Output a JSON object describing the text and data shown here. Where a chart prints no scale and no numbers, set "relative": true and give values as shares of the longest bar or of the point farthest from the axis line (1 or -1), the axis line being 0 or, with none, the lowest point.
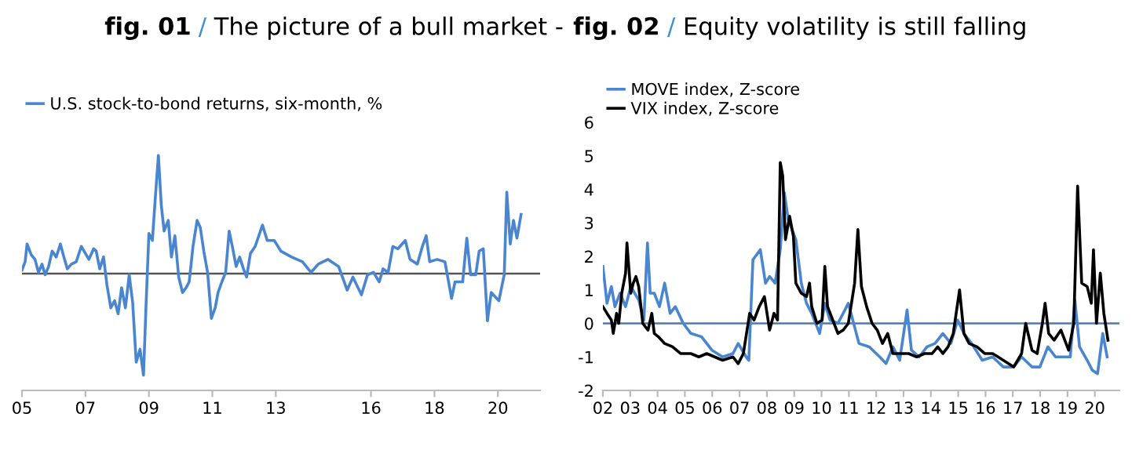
{
  "chart_data": [
    {
      "type": "line",
      "title": "fig. 01 / The picture of a bull market -",
      "relative": true,
      "legend": "top left",
      "line_style": "solid",
      "xlim": [
        2005,
        2021.33
      ],
      "xticks": [
        {
          "value": 2005,
          "label": "05"
        },
        {
          "value": 2007,
          "label": "07"
        },
        {
          "value": 2009,
          "label": "09"
        },
        {
          "value": 2011,
          "label": "11"
        },
        {
          "value": 2013,
          "label": "13"
        },
        {
          "value": 2016,
          "label": "16"
        },
        {
          "value": 2018,
          "label": "18"
        },
        {
          "value": 2020,
          "label": "20"
        }
      ],
      "series": [
        {
          "name": "U.S. stock-to-bond returns, six-month, %",
          "color": "#4a86d0",
          "x": [
            2005.0,
            2005.1,
            2005.16,
            2005.29,
            2005.41,
            2005.52,
            2005.63,
            2005.73,
            2005.84,
            2005.95,
            2006.08,
            2006.21,
            2006.32,
            2006.43,
            2006.56,
            2006.71,
            2006.87,
            2007.0,
            2007.11,
            2007.26,
            2007.34,
            2007.45,
            2007.57,
            2007.68,
            2007.8,
            2007.92,
            2008.03,
            2008.14,
            2008.26,
            2008.38,
            2008.49,
            2008.6,
            2008.72,
            2008.83,
            2008.91,
            2009.0,
            2009.11,
            2009.21,
            2009.3,
            2009.39,
            2009.48,
            2009.61,
            2009.71,
            2009.82,
            2009.94,
            2010.06,
            2010.17,
            2010.27,
            2010.39,
            2010.52,
            2010.62,
            2010.73,
            2010.85,
            2010.97,
            2011.09,
            2011.18,
            2011.3,
            2011.42,
            2011.53,
            2011.63,
            2011.75,
            2011.86,
            2011.98,
            2012.08,
            2012.2,
            2012.35,
            2012.58,
            2012.73,
            2012.95,
            2013.16,
            2013.5,
            2013.84,
            2014.11,
            2014.34,
            2014.64,
            2014.98,
            2015.25,
            2015.43,
            2015.7,
            2015.89,
            2016.08,
            2016.26,
            2016.38,
            2016.54,
            2016.69,
            2016.85,
            2017.08,
            2017.23,
            2017.46,
            2017.62,
            2017.74,
            2017.85,
            2018.08,
            2018.33,
            2018.54,
            2018.65,
            2018.89,
            2019.02,
            2019.14,
            2019.3,
            2019.41,
            2019.54,
            2019.67,
            2019.79,
            2020.03,
            2020.2,
            2020.28,
            2020.39,
            2020.49,
            2020.6,
            2020.73
          ],
          "values": [
            0.03,
            0.1,
            0.25,
            0.16,
            0.12,
            0.01,
            0.08,
            -0.01,
            0.06,
            0.19,
            0.14,
            0.25,
            0.14,
            0.04,
            0.08,
            0.1,
            0.23,
            0.17,
            0.12,
            0.21,
            0.19,
            0.04,
            0.14,
            -0.1,
            -0.29,
            -0.23,
            -0.34,
            -0.12,
            -0.29,
            -0.01,
            -0.25,
            -0.75,
            -0.64,
            -0.86,
            -0.27,
            0.34,
            0.28,
            0.67,
            1,
            0.58,
            0.36,
            0.45,
            0.14,
            0.32,
            -0.03,
            -0.16,
            -0.12,
            -0.07,
            0.23,
            0.45,
            0.39,
            0.19,
            0.01,
            -0.38,
            -0.29,
            -0.16,
            -0.07,
            0.01,
            0.36,
            0.23,
            0.06,
            0.14,
            0.04,
            -0.03,
            0.17,
            0.23,
            0.41,
            0.28,
            0.28,
            0.19,
            0.14,
            0.1,
            0.01,
            0.08,
            0.12,
            0.06,
            -0.14,
            -0.03,
            -0.18,
            -0.01,
            0.01,
            -0.07,
            0.04,
            0.01,
            0.23,
            0.21,
            0.28,
            0.12,
            0.08,
            0.23,
            0.32,
            0.1,
            0.12,
            0.1,
            -0.21,
            -0.07,
            -0.07,
            0.3,
            -0.01,
            -0.01,
            0.19,
            0.21,
            -0.4,
            -0.16,
            -0.23,
            -0.01,
            0.69,
            0.25,
            0.45,
            0.3,
            0.5
          ]
        }
      ]
    },
    {
      "type": "line",
      "title": "fig. 02 / Equity volatility is still falling",
      "legend": "top left",
      "line_style": "solid",
      "xlim": [
        2002,
        2020.9
      ],
      "ylim": [
        -2,
        6
      ],
      "yticks": [
        -2,
        -1,
        0,
        1,
        2,
        3,
        4,
        5,
        6
      ],
      "xticks": [
        {
          "value": 2002,
          "label": "02"
        },
        {
          "value": 2003,
          "label": "03"
        },
        {
          "value": 2004,
          "label": "04"
        },
        {
          "value": 2005,
          "label": "05"
        },
        {
          "value": 2006,
          "label": "06"
        },
        {
          "value": 2007,
          "label": "07"
        },
        {
          "value": 2008,
          "label": "08"
        },
        {
          "value": 2009,
          "label": "09"
        },
        {
          "value": 2010,
          "label": "10"
        },
        {
          "value": 2011,
          "label": "11"
        },
        {
          "value": 2012,
          "label": "12"
        },
        {
          "value": 2013,
          "label": "13"
        },
        {
          "value": 2014,
          "label": "14"
        },
        {
          "value": 2015,
          "label": "15"
        },
        {
          "value": 2016,
          "label": "16"
        },
        {
          "value": 2017,
          "label": "17"
        },
        {
          "value": 2018,
          "label": "18"
        },
        {
          "value": 2019,
          "label": "19"
        },
        {
          "value": 2020,
          "label": "20"
        }
      ],
      "ref_lines": [
        {
          "axis": "y",
          "value": 0,
          "color": "#4a7ab0"
        }
      ],
      "series": [
        {
          "name": "MOVE index, Z-score",
          "color": "#4a86d0",
          "x": [
            2002.0,
            2002.15,
            2002.31,
            2002.44,
            2002.63,
            2002.83,
            2003.02,
            2003.31,
            2003.5,
            2003.63,
            2003.73,
            2003.88,
            2004.07,
            2004.26,
            2004.46,
            2004.65,
            2004.94,
            2005.22,
            2005.61,
            2005.99,
            2006.38,
            2006.76,
            2006.95,
            2007.24,
            2007.34,
            2007.49,
            2007.76,
            2007.95,
            2008.1,
            2008.3,
            2008.49,
            2008.64,
            2008.78,
            2009.06,
            2009.26,
            2009.45,
            2009.64,
            2009.93,
            2010.12,
            2010.31,
            2010.6,
            2010.98,
            2011.37,
            2011.75,
            2012.13,
            2012.36,
            2012.61,
            2012.86,
            2013.13,
            2013.29,
            2013.57,
            2013.86,
            2014.15,
            2014.44,
            2014.73,
            2014.98,
            2015.21,
            2015.49,
            2015.88,
            2016.26,
            2016.65,
            2017.03,
            2017.32,
            2017.7,
            2017.99,
            2018.28,
            2018.56,
            2018.85,
            2019.1,
            2019.27,
            2019.44,
            2019.72,
            2019.91,
            2020.1,
            2020.29,
            2020.45
          ],
          "values": [
            1.7,
            0.6,
            1.1,
            0.5,
            0.9,
            0.5,
            1.1,
            0.7,
            0.1,
            2.4,
            0.9,
            0.9,
            0.5,
            1.2,
            0.3,
            0.5,
            0.0,
            -0.3,
            -0.4,
            -0.8,
            -1.0,
            -0.9,
            -0.6,
            -1.0,
            -1.1,
            1.9,
            2.2,
            1.2,
            1.4,
            1.2,
            2.2,
            3.9,
            3.1,
            2.5,
            1.2,
            0.6,
            0.3,
            -0.3,
            0.6,
            0.1,
            0.0,
            0.6,
            -0.6,
            -0.7,
            -1.0,
            -1.2,
            -0.7,
            -1.1,
            0.4,
            -0.8,
            -1.0,
            -0.7,
            -0.6,
            -0.3,
            -0.6,
            0.1,
            -0.3,
            -0.6,
            -1.1,
            -1.0,
            -1.3,
            -1.3,
            -1.0,
            -1.3,
            -1.3,
            -0.7,
            -1.0,
            -1.0,
            -1.0,
            0.7,
            -0.7,
            -1.1,
            -1.4,
            -1.5,
            -0.3,
            -1.0
          ]
        },
        {
          "name": "VIX index, Z-score",
          "color": "#000000",
          "x": [
            2002.0,
            2002.15,
            2002.31,
            2002.38,
            2002.5,
            2002.58,
            2002.69,
            2002.83,
            2002.88,
            2003.02,
            2003.11,
            2003.21,
            2003.31,
            2003.46,
            2003.65,
            2003.79,
            2003.88,
            2004.03,
            2004.26,
            2004.55,
            2004.84,
            2005.22,
            2005.51,
            2005.8,
            2006.09,
            2006.38,
            2006.76,
            2006.95,
            2007.14,
            2007.37,
            2007.53,
            2007.72,
            2007.91,
            2008.1,
            2008.26,
            2008.39,
            2008.49,
            2008.58,
            2008.68,
            2008.83,
            2008.97,
            2009.06,
            2009.26,
            2009.45,
            2009.56,
            2009.64,
            2009.83,
            2010.02,
            2010.12,
            2010.22,
            2010.41,
            2010.6,
            2010.79,
            2010.98,
            2011.21,
            2011.33,
            2011.46,
            2011.65,
            2011.85,
            2012.04,
            2012.23,
            2012.42,
            2012.61,
            2012.9,
            2013.19,
            2013.48,
            2013.77,
            2014.05,
            2014.25,
            2014.44,
            2014.63,
            2014.82,
            2015.05,
            2015.21,
            2015.4,
            2015.69,
            2015.97,
            2016.26,
            2016.65,
            2017.03,
            2017.32,
            2017.47,
            2017.7,
            2017.89,
            2018.08,
            2018.18,
            2018.31,
            2018.51,
            2018.76,
            2019.04,
            2019.23,
            2019.37,
            2019.52,
            2019.72,
            2019.87,
            2019.95,
            2020.06,
            2020.2,
            2020.33,
            2020.48
          ],
          "values": [
            0.5,
            0.3,
            0.1,
            -0.3,
            0.3,
            0.0,
            0.9,
            1.5,
            2.4,
            0.9,
            1.2,
            1.4,
            1.1,
            0.0,
            -0.2,
            0.3,
            -0.3,
            -0.4,
            -0.6,
            -0.7,
            -0.9,
            -0.9,
            -1.0,
            -0.9,
            -1.0,
            -1.1,
            -1.0,
            -1.2,
            -0.9,
            0.3,
            0.1,
            0.5,
            0.8,
            -0.2,
            0.3,
            0.1,
            4.8,
            4.4,
            2.5,
            3.2,
            2.6,
            1.2,
            0.9,
            0.8,
            1.2,
            0.5,
            0.0,
            0.1,
            1.7,
            0.5,
            0.1,
            -0.3,
            -0.2,
            0.0,
            1.2,
            2.8,
            1.1,
            0.5,
            0.0,
            -0.2,
            -0.6,
            -0.3,
            -0.9,
            -0.9,
            -0.9,
            -1.0,
            -0.9,
            -0.9,
            -0.7,
            -0.9,
            -0.7,
            -0.3,
            1.0,
            -0.3,
            -0.6,
            -0.7,
            -0.9,
            -0.9,
            -1.1,
            -1.3,
            -0.9,
            0.0,
            -0.8,
            -0.9,
            0.0,
            0.6,
            -0.3,
            -0.5,
            -0.2,
            -0.8,
            0.0,
            4.1,
            1.2,
            1.1,
            0.6,
            2.2,
            0.0,
            1.5,
            0.3,
            -0.5
          ]
        }
      ]
    }
  ]
}
